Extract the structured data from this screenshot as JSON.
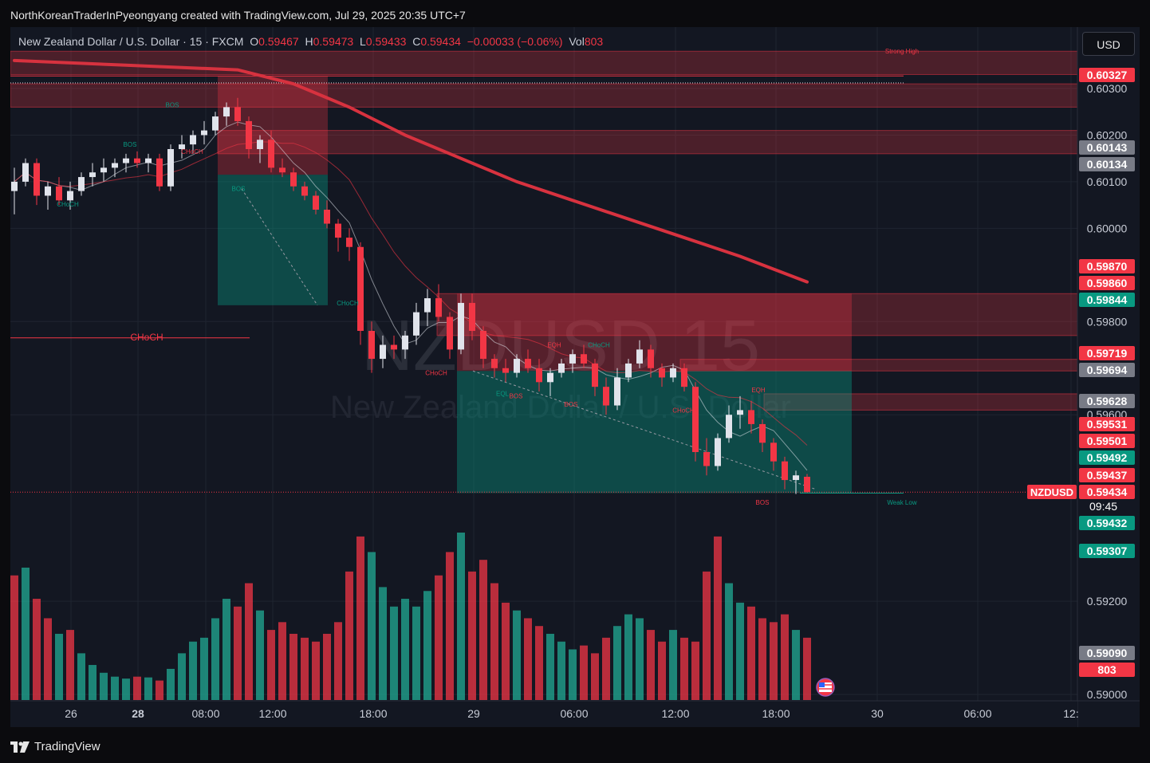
{
  "header": {
    "credit": "NorthKoreanTraderInPyeongyang created with TradingView.com, Jul 29, 2025 20:35 UTC+7"
  },
  "legend": {
    "symbol": "New Zealand Dollar / U.S. Dollar · 15 · FXCM",
    "open_label": "O",
    "open": "0.59467",
    "high_label": "H",
    "high": "0.59473",
    "low_label": "L",
    "low": "0.59433",
    "close_label": "C",
    "close": "0.59434",
    "change": "−0.00033 (−0.06%)",
    "vol_label": "Vol",
    "vol": "803"
  },
  "toolbar": {
    "currency": "USD"
  },
  "watermark": {
    "line1": "NZDUSD, 15",
    "line2": "New Zealand Dollar / U.S. Dollar"
  },
  "footer": {
    "brand": "TradingView"
  },
  "colors": {
    "background": "#131722",
    "up": "#e0e3eb",
    "down": "#f23645",
    "vol_up": "#22ab94",
    "vol_down": "#f23645",
    "ema": "#d7323f",
    "teal_label": "#089981",
    "red_label": "#f23645",
    "grey_label": "#787b86"
  },
  "chart_data": {
    "type": "candlestick",
    "symbol": "NZDUSD",
    "interval": "15",
    "y_range": [
      0.59,
      0.6043
    ],
    "y_ticks": [
      "0.60300",
      "0.60200",
      "0.60100",
      "0.60000",
      "0.59800",
      "0.59600",
      "0.59200",
      "0.59000"
    ],
    "x_ticks": [
      "26",
      "28",
      "08:00",
      "12:00",
      "18:00",
      "29",
      "06:00",
      "12:00",
      "18:00",
      "30",
      "06:00",
      "12:"
    ],
    "price_labels": [
      {
        "value": "0.60327",
        "color": "red"
      },
      {
        "value": "0.60143",
        "color": "grey"
      },
      {
        "value": "0.60134",
        "color": "grey"
      },
      {
        "value": "0.59870",
        "color": "red"
      },
      {
        "value": "0.59860",
        "color": "red"
      },
      {
        "value": "0.59844",
        "color": "teal"
      },
      {
        "value": "0.59719",
        "color": "red"
      },
      {
        "value": "0.59694",
        "color": "grey"
      },
      {
        "value": "0.59628",
        "color": "grey"
      },
      {
        "value": "0.59531",
        "color": "red"
      },
      {
        "value": "0.59501",
        "color": "red"
      },
      {
        "value": "0.59492",
        "color": "teal"
      },
      {
        "value": "0.59437",
        "color": "red"
      },
      {
        "value": "0.59434",
        "color": "red"
      },
      {
        "value": "0.59432",
        "color": "teal"
      },
      {
        "value": "0.59307",
        "color": "teal"
      },
      {
        "value": "0.59090",
        "color": "grey"
      },
      {
        "value": "803",
        "color": "red"
      }
    ],
    "symbol_tag": "NZDUSD",
    "countdown": "09:45",
    "annotations": [
      {
        "text": "Strong High",
        "price": 0.6038
      },
      {
        "text": "Weak Low",
        "price": 0.59412
      },
      {
        "text": "CHoCH",
        "price": 0.59765
      },
      {
        "text": "CHoCH",
        "price": 0.60165
      },
      {
        "text": "BOS",
        "price": 0.6018
      },
      {
        "text": "BOS",
        "price": 0.60265
      },
      {
        "text": "CHoCH",
        "price": 0.60052
      },
      {
        "text": "BOS",
        "price": 0.60085
      },
      {
        "text": "CHoCH",
        "price": 0.5984
      },
      {
        "text": "CHoCH",
        "price": 0.5969
      },
      {
        "text": "EQL",
        "price": 0.59646
      },
      {
        "text": "BOS",
        "price": 0.59641
      },
      {
        "text": "EQH",
        "price": 0.5975
      },
      {
        "text": "CHoCH",
        "price": 0.5975
      },
      {
        "text": "BOS",
        "price": 0.59623
      },
      {
        "text": "CHoCH",
        "price": 0.5961
      },
      {
        "text": "EQH",
        "price": 0.59653
      },
      {
        "text": "BOS",
        "price": 0.59412
      }
    ],
    "zones": [
      {
        "kind": "supply",
        "top": 0.6038,
        "bottom": 0.6033
      },
      {
        "kind": "supply",
        "top": 0.6031,
        "bottom": 0.6026
      },
      {
        "kind": "supply",
        "top": 0.6021,
        "bottom": 0.6016
      },
      {
        "kind": "supply",
        "top": 0.5986,
        "bottom": 0.5977
      },
      {
        "kind": "supply",
        "top": 0.59694,
        "bottom": 0.59719
      },
      {
        "kind": "supply",
        "top": 0.59645,
        "bottom": 0.5961
      },
      {
        "kind": "trade_short_1",
        "entry": 0.60115,
        "stop": 0.60327,
        "target": 0.59835
      },
      {
        "kind": "trade_short_2",
        "entry": 0.59694,
        "stop": 0.5986,
        "target": 0.59432
      }
    ],
    "candles": [
      [
        0.6008,
        0.6013,
        0.6003,
        0.601
      ],
      [
        0.601,
        0.6015,
        0.6009,
        0.6014
      ],
      [
        0.6014,
        0.6015,
        0.6005,
        0.6007
      ],
      [
        0.6007,
        0.601,
        0.6004,
        0.6009
      ],
      [
        0.6009,
        0.6011,
        0.6005,
        0.6006
      ],
      [
        0.6006,
        0.601,
        0.6004,
        0.6008
      ],
      [
        0.6008,
        0.6012,
        0.6007,
        0.6011
      ],
      [
        0.6011,
        0.6014,
        0.6009,
        0.6012
      ],
      [
        0.6012,
        0.6015,
        0.601,
        0.6013
      ],
      [
        0.6013,
        0.6015,
        0.6011,
        0.6014
      ],
      [
        0.6014,
        0.6016,
        0.6012,
        0.6015
      ],
      [
        0.6015,
        0.60165,
        0.6013,
        0.6014
      ],
      [
        0.6014,
        0.6016,
        0.6012,
        0.6015
      ],
      [
        0.6015,
        0.6016,
        0.6008,
        0.6009
      ],
      [
        0.6009,
        0.6018,
        0.6008,
        0.6017
      ],
      [
        0.6017,
        0.602,
        0.6015,
        0.6018
      ],
      [
        0.6018,
        0.6021,
        0.6016,
        0.602
      ],
      [
        0.602,
        0.6023,
        0.6018,
        0.6021
      ],
      [
        0.6021,
        0.6025,
        0.602,
        0.6024
      ],
      [
        0.6024,
        0.6027,
        0.6022,
        0.6026
      ],
      [
        0.6026,
        0.6028,
        0.6022,
        0.6023
      ],
      [
        0.6023,
        0.6024,
        0.6015,
        0.6017
      ],
      [
        0.6017,
        0.602,
        0.6014,
        0.6019
      ],
      [
        0.6019,
        0.6021,
        0.6012,
        0.6013
      ],
      [
        0.6013,
        0.6015,
        0.6011,
        0.6012
      ],
      [
        0.6012,
        0.6013,
        0.6008,
        0.6009
      ],
      [
        0.6009,
        0.601,
        0.6006,
        0.6007
      ],
      [
        0.6007,
        0.6008,
        0.6003,
        0.6004
      ],
      [
        0.6004,
        0.6006,
        0.6,
        0.6001
      ],
      [
        0.6001,
        0.6002,
        0.5995,
        0.5998
      ],
      [
        0.5998,
        0.6,
        0.5993,
        0.5996
      ],
      [
        0.5996,
        0.5997,
        0.5975,
        0.5978
      ],
      [
        0.5978,
        0.598,
        0.5969,
        0.5972
      ],
      [
        0.5972,
        0.5977,
        0.597,
        0.5975
      ],
      [
        0.5975,
        0.5977,
        0.5972,
        0.5974
      ],
      [
        0.5974,
        0.5978,
        0.5972,
        0.5977
      ],
      [
        0.5977,
        0.5984,
        0.5975,
        0.5982
      ],
      [
        0.5982,
        0.5987,
        0.5979,
        0.5985
      ],
      [
        0.5985,
        0.5988,
        0.598,
        0.5981
      ],
      [
        0.5981,
        0.5982,
        0.5972,
        0.5974
      ],
      [
        0.5974,
        0.5986,
        0.5973,
        0.5984
      ],
      [
        0.5984,
        0.5986,
        0.5976,
        0.5978
      ],
      [
        0.5978,
        0.5979,
        0.597,
        0.5972
      ],
      [
        0.5972,
        0.5973,
        0.5968,
        0.597
      ],
      [
        0.597,
        0.5972,
        0.5967,
        0.5969
      ],
      [
        0.5969,
        0.5973,
        0.5968,
        0.5972
      ],
      [
        0.5972,
        0.5974,
        0.5969,
        0.597
      ],
      [
        0.597,
        0.5972,
        0.5965,
        0.5967
      ],
      [
        0.5967,
        0.597,
        0.5964,
        0.5969
      ],
      [
        0.5969,
        0.5972,
        0.5968,
        0.5971
      ],
      [
        0.5971,
        0.5974,
        0.5969,
        0.5973
      ],
      [
        0.5973,
        0.5975,
        0.597,
        0.5971
      ],
      [
        0.5971,
        0.5972,
        0.5964,
        0.5966
      ],
      [
        0.5966,
        0.5968,
        0.596,
        0.5962
      ],
      [
        0.5962,
        0.597,
        0.5961,
        0.5968
      ],
      [
        0.5968,
        0.5972,
        0.5967,
        0.5971
      ],
      [
        0.5971,
        0.5976,
        0.597,
        0.5974
      ],
      [
        0.5974,
        0.5975,
        0.5968,
        0.597
      ],
      [
        0.597,
        0.5971,
        0.5966,
        0.5968
      ],
      [
        0.5968,
        0.5971,
        0.5967,
        0.597
      ],
      [
        0.597,
        0.5971,
        0.5965,
        0.5966
      ],
      [
        0.5966,
        0.5967,
        0.595,
        0.5952
      ],
      [
        0.5952,
        0.5955,
        0.5947,
        0.5949
      ],
      [
        0.5949,
        0.5956,
        0.5948,
        0.5955
      ],
      [
        0.5955,
        0.5962,
        0.5954,
        0.596
      ],
      [
        0.596,
        0.5964,
        0.5957,
        0.5961
      ],
      [
        0.5961,
        0.5963,
        0.5956,
        0.5958
      ],
      [
        0.5958,
        0.5959,
        0.5952,
        0.5954
      ],
      [
        0.5954,
        0.5955,
        0.5948,
        0.595
      ],
      [
        0.595,
        0.5951,
        0.5944,
        0.5946
      ],
      [
        0.5946,
        0.5948,
        0.5943,
        0.5947
      ],
      [
        0.59467,
        0.59473,
        0.59433,
        0.59434
      ]
    ],
    "ema_points": [
      [
        0,
        0.6036
      ],
      [
        10,
        0.6035
      ],
      [
        20,
        0.6034
      ],
      [
        25,
        0.6031
      ],
      [
        30,
        0.6026
      ],
      [
        35,
        0.602
      ],
      [
        40,
        0.6015
      ],
      [
        45,
        0.601
      ],
      [
        50,
        0.6006
      ],
      [
        55,
        0.6002
      ],
      [
        60,
        0.5998
      ],
      [
        65,
        0.5994
      ],
      [
        71,
        0.59885
      ]
    ],
    "volume": [
      320,
      340,
      260,
      210,
      170,
      180,
      120,
      90,
      70,
      60,
      55,
      60,
      58,
      50,
      80,
      120,
      150,
      160,
      210,
      260,
      240,
      300,
      230,
      180,
      200,
      170,
      160,
      150,
      170,
      200,
      330,
      420,
      380,
      290,
      240,
      260,
      240,
      280,
      320,
      380,
      430,
      330,
      360,
      300,
      250,
      230,
      210,
      190,
      170,
      150,
      130,
      140,
      120,
      160,
      190,
      220,
      210,
      180,
      150,
      180,
      160,
      150,
      330,
      420,
      300,
      250,
      240,
      210,
      200,
      220,
      180,
      160
    ],
    "volume_up": [
      false,
      true,
      false,
      false,
      true,
      false,
      true,
      true,
      true,
      true,
      true,
      false,
      true,
      false,
      true,
      true,
      true,
      true,
      true,
      true,
      false,
      false,
      true,
      false,
      false,
      false,
      false,
      false,
      false,
      false,
      false,
      false,
      true,
      true,
      true,
      true,
      true,
      true,
      false,
      false,
      true,
      false,
      false,
      false,
      false,
      true,
      false,
      false,
      true,
      true,
      true,
      false,
      false,
      false,
      true,
      true,
      true,
      false,
      false,
      true,
      false,
      false,
      false,
      false,
      true,
      true,
      false,
      false,
      false,
      false,
      true,
      false
    ]
  }
}
